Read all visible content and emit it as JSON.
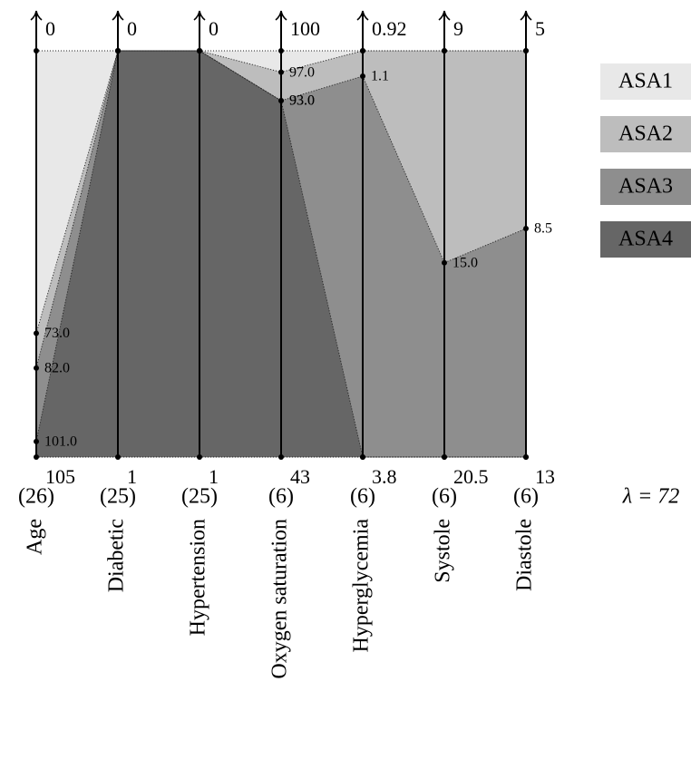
{
  "chart_data": {
    "type": "parallel",
    "axes": [
      {
        "name": "Age",
        "weight": "(26)",
        "lim": [
          0,
          105
        ]
      },
      {
        "name": "Diabetic",
        "weight": "(25)",
        "lim": [
          0,
          1
        ]
      },
      {
        "name": "Hypertension",
        "weight": "(25)",
        "lim": [
          0,
          1
        ]
      },
      {
        "name": "Oxygen saturation",
        "weight": "(6)",
        "lim": [
          100,
          43
        ]
      },
      {
        "name": "Hyperglycemia",
        "weight": "(6)",
        "lim": [
          0.92,
          3.8
        ]
      },
      {
        "name": "Systole",
        "weight": "(6)",
        "lim": [
          9,
          20.5
        ]
      },
      {
        "name": "Diastole",
        "weight": "(6)",
        "lim": [
          5,
          13
        ]
      }
    ],
    "series": [
      {
        "name": "ASA1",
        "color": "#e8e8e8"
      },
      {
        "name": "ASA2",
        "color": "#bdbdbd"
      },
      {
        "name": "ASA3",
        "color": "#8e8e8e"
      },
      {
        "name": "ASA4",
        "color": "#666666"
      }
    ],
    "boundaries": [
      {
        "values": [
          73,
          0,
          0,
          97,
          0.92,
          9,
          5
        ],
        "value_labels": [
          "73.0",
          null,
          null,
          "97.0",
          null,
          null,
          null
        ]
      },
      {
        "values": [
          82,
          0,
          0,
          93,
          1.1,
          15,
          8.5
        ],
        "value_labels": [
          "82.0",
          null,
          null,
          "93.0",
          "1.1",
          "15.0",
          "8.5"
        ]
      },
      {
        "values": [
          101,
          0,
          0,
          93,
          3.8,
          20.5,
          13
        ],
        "value_labels": [
          "101.0",
          null,
          null,
          "93.0",
          null,
          null,
          null
        ]
      }
    ],
    "lambda_label": "λ = 72"
  }
}
